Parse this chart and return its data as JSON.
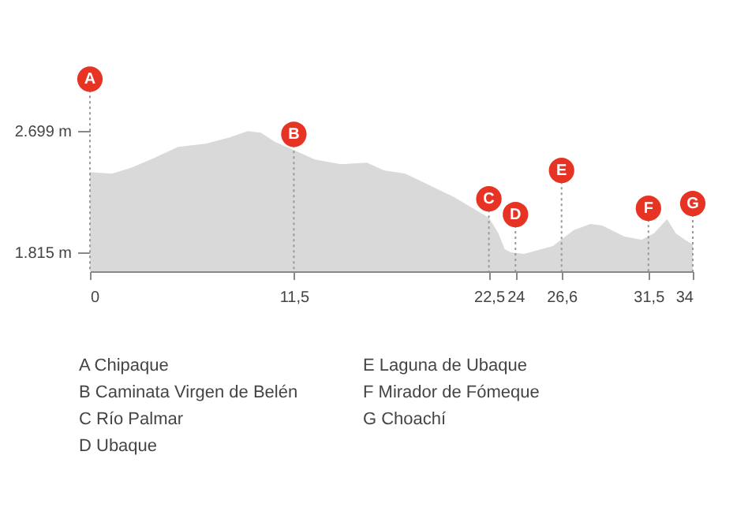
{
  "chart_data": {
    "type": "area",
    "x": [
      0,
      1.24,
      2.38,
      3.63,
      4.97,
      6.53,
      7.87,
      8.91,
      9.64,
      10.46,
      11.5,
      12.68,
      14.15,
      15.62,
      16.61,
      17.79,
      19.07,
      20.54,
      22.5,
      23.04,
      23.39,
      23.75,
      24.49,
      26.11,
      27.27,
      28.23,
      28.9,
      30.15,
      31.12,
      31.8,
      32.3,
      32.55,
      33.05,
      33.55,
      34
    ],
    "series": [
      {
        "color": "#d9d9d9",
        "values": [
          2400,
          2389,
          2435,
          2504,
          2584,
          2607,
          2653,
          2699,
          2688,
          2619,
          2561,
          2492,
          2458,
          2469,
          2412,
          2389,
          2309,
          2217,
          2068,
          1953,
          1838,
          1815,
          1803,
          1861,
          1976,
          2022,
          2010,
          1930,
          1907,
          1953,
          2022,
          2056,
          1953,
          1907,
          1872
        ]
      }
    ],
    "xlim": [
      0,
      34
    ],
    "xticks": [
      0,
      {
        "value": 11.5,
        "label": "11,5"
      },
      {
        "value": 22.5,
        "label": "22,5"
      },
      24,
      {
        "value": 26.6,
        "label": "26,6"
      },
      {
        "value": 31.5,
        "label": "31,5"
      },
      34
    ],
    "ylim": [
      1677,
      3080
    ],
    "yticks": [
      {
        "value": 1815,
        "label": "1.815 m"
      },
      {
        "value": 2699,
        "label": "2.699 m"
      }
    ],
    "annotations": [
      {
        "text": "A",
        "x": 0,
        "y": 3078
      },
      {
        "text": "B",
        "x": 11.5,
        "y": 2676
      },
      {
        "text": "C",
        "x": 22.5,
        "y": 2205
      },
      {
        "text": "D",
        "x": 24,
        "y": 2091
      },
      {
        "text": "E",
        "x": 26.6,
        "y": 2412
      },
      {
        "text": "F",
        "x": 31.5,
        "y": 2136
      },
      {
        "text": "G",
        "x": 34,
        "y": 2171
      },
      "A Chipaque",
      "B Caminata Virgen de Belén",
      "C Río Palmar",
      "D Ubaque",
      "E Laguna de Ubaque",
      "F Mirador de Fómeque",
      "G Choachí"
    ]
  }
}
